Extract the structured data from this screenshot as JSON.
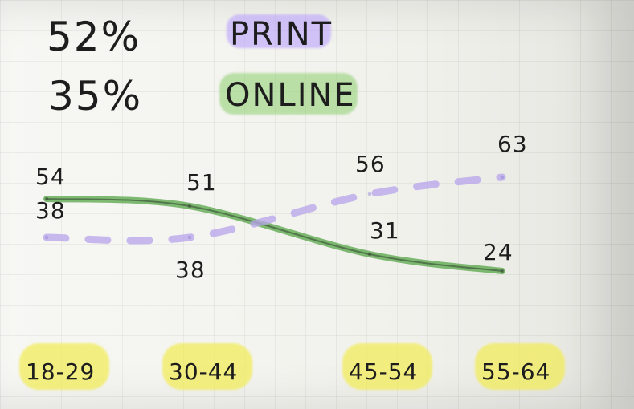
{
  "summary": {
    "print_percent": "52%",
    "print_label": "PRINT",
    "online_percent": "35%",
    "online_label": "ONLINE"
  },
  "colors": {
    "print_highlight": "#b69cff",
    "online_highlight": "#8ccf6d",
    "category_highlight": "#f2ec55",
    "line_print": "#b8a7ea",
    "line_online": "#5ba84c",
    "ink": "#1d1d1d"
  },
  "chart_data": {
    "type": "line",
    "categories": [
      "18-29",
      "30-44",
      "45-54",
      "55-64"
    ],
    "series": [
      {
        "name": "ONLINE",
        "values": [
          54,
          51,
          31,
          24
        ],
        "labels": [
          "54",
          "51",
          "31",
          "24"
        ]
      },
      {
        "name": "PRINT",
        "values": [
          38,
          38,
          56,
          63
        ],
        "labels": [
          "38",
          "38",
          "56",
          "63"
        ]
      }
    ],
    "ylim": [
      20,
      70
    ],
    "grid": false,
    "legend": "top-left"
  }
}
